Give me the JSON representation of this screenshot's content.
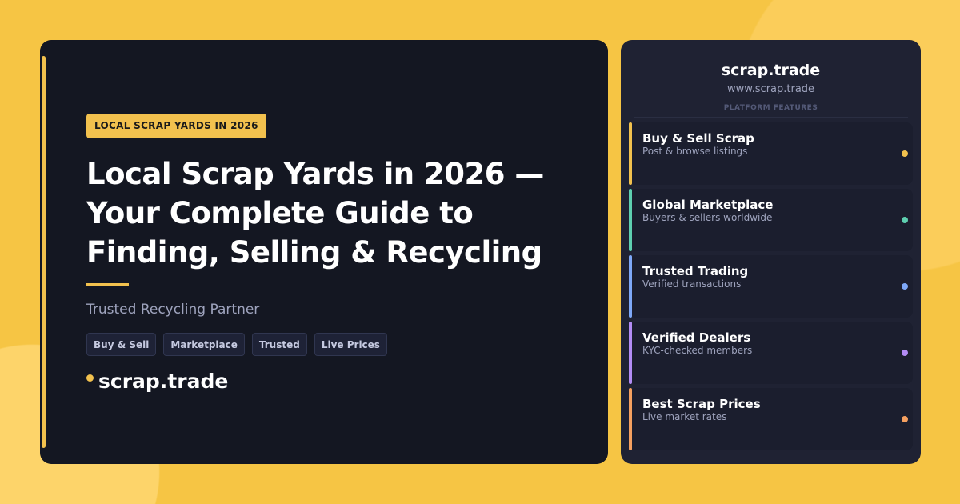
{
  "hero": {
    "badge": "LOCAL SCRAP YARDS IN 2026",
    "title": "Local Scrap Yards in 2026 — Your Complete Guide to Finding, Selling & Recycling",
    "subtitle": "Trusted Recycling Partner",
    "tags": [
      "Buy & Sell",
      "Marketplace",
      "Trusted",
      "Live Prices"
    ],
    "brand": "scrap.trade"
  },
  "panel": {
    "title": "scrap.trade",
    "url": "www.scrap.trade",
    "section": "PLATFORM FEATURES",
    "features": [
      {
        "name": "Buy & Sell Scrap",
        "desc": "Post & browse listings",
        "color": "#f2c14e"
      },
      {
        "name": "Global Marketplace",
        "desc": "Buyers & sellers worldwide",
        "color": "#5ecfb0"
      },
      {
        "name": "Trusted Trading",
        "desc": "Verified transactions",
        "color": "#7ea8f8"
      },
      {
        "name": "Verified Dealers",
        "desc": "KYC-checked members",
        "color": "#b38cf5"
      },
      {
        "name": "Best Scrap Prices",
        "desc": "Live market rates",
        "color": "#f5a060"
      }
    ]
  },
  "colors": {
    "accent": "#f2c14e",
    "background": "#f6c544",
    "card": "#141722"
  }
}
